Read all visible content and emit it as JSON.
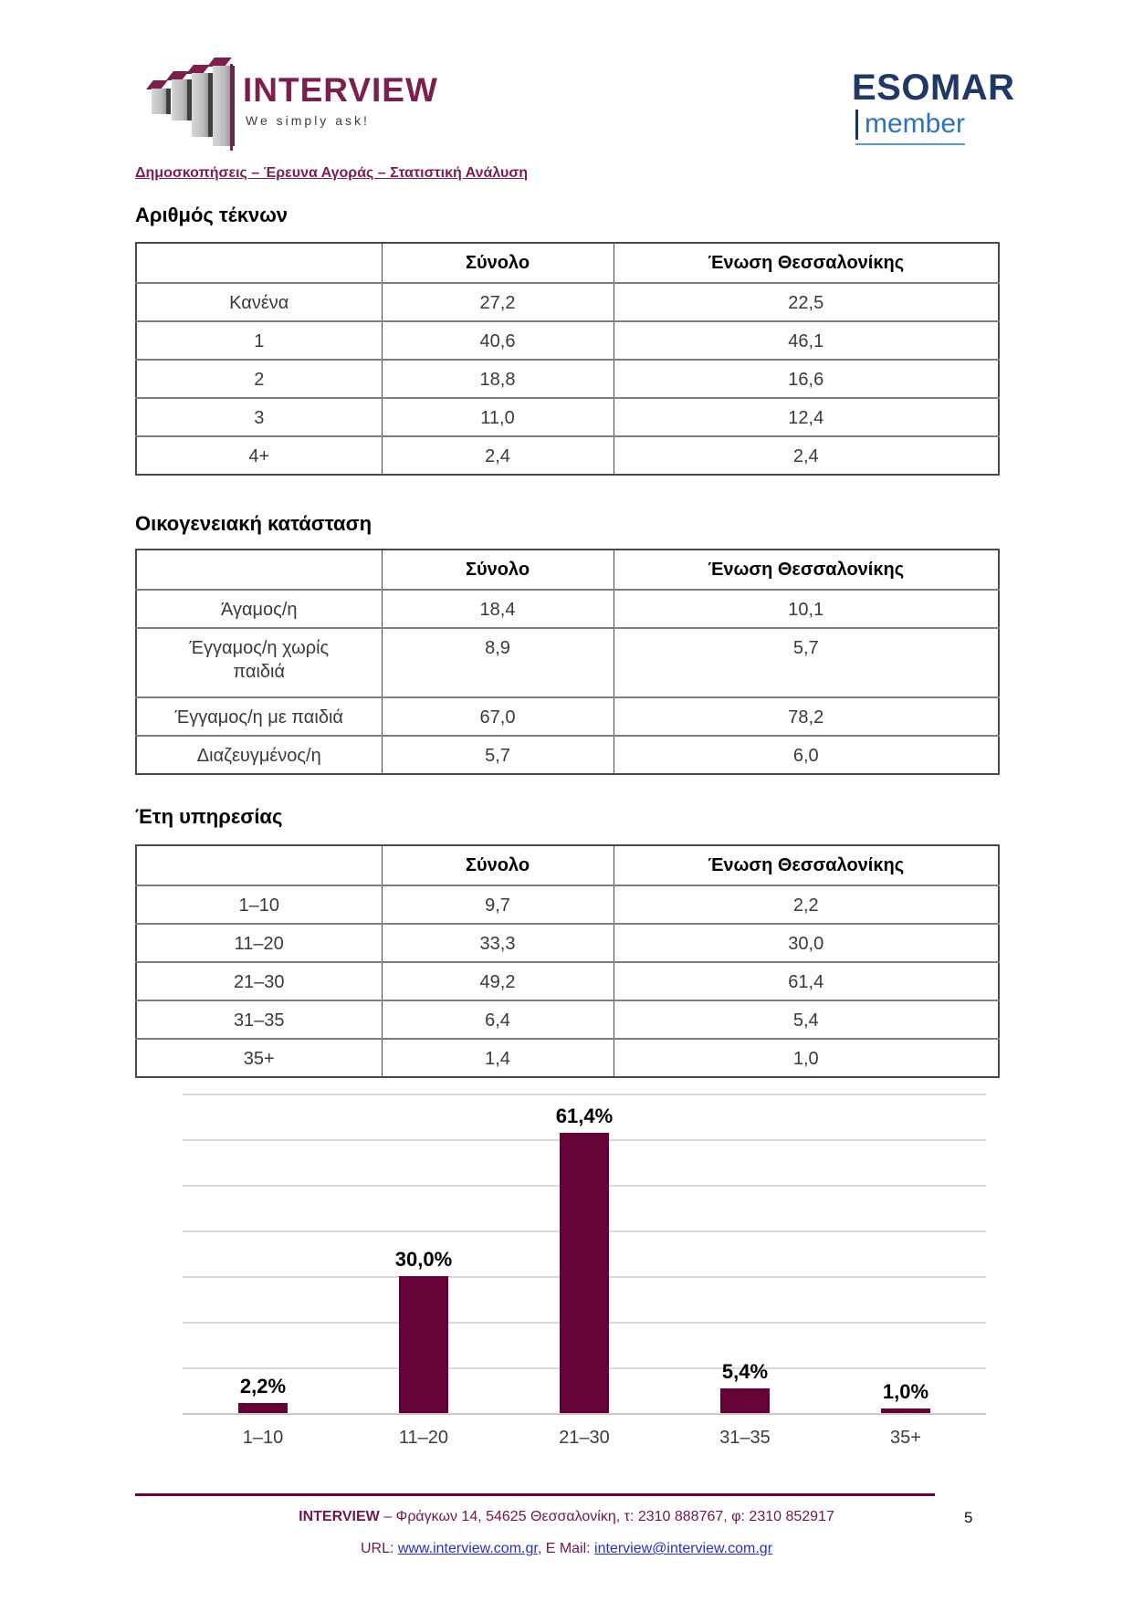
{
  "page": {
    "number": "5"
  },
  "header": {
    "brand": {
      "name": "INTERVIEW",
      "slogan": "We simply ask!",
      "color": "#7A1F4E",
      "logo_icon": "bar-chart-3d-icon"
    },
    "esomar": {
      "name": "ESOMAR",
      "member": "member",
      "name_color": "#1F3864",
      "member_color": "#2E74B5"
    },
    "department_line": "Δημοσκοπήσεις – Έρευνα Αγοράς – Στατιστική Ανάλυση"
  },
  "tables": [
    {
      "title": "Αριθμός τέκνων",
      "headers": [
        "",
        "Σύνολο",
        "Ένωση Θεσσαλονίκης"
      ],
      "rows": [
        [
          "Κανένα",
          "27,2",
          "22,5"
        ],
        [
          "1",
          "40,6",
          "46,1"
        ],
        [
          "2",
          "18,8",
          "16,6"
        ],
        [
          "3",
          "11,0",
          "12,4"
        ],
        [
          "4+",
          "2,4",
          "2,4"
        ]
      ]
    },
    {
      "title": "Οικογενειακή κατάσταση",
      "headers": [
        "",
        "Σύνολο",
        "Ένωση Θεσσαλονίκης"
      ],
      "rows": [
        [
          "Άγαμος/η",
          "18,4",
          "10,1"
        ],
        [
          "Έγγαμος/η χωρίς\nπαιδιά",
          "8,9",
          "5,7"
        ],
        [
          "Έγγαμος/η με παιδιά",
          "67,0",
          "78,2"
        ],
        [
          "Διαζευγμένος/η",
          "5,7",
          "6,0"
        ]
      ]
    },
    {
      "title": "Έτη υπηρεσίας",
      "headers": [
        "",
        "Σύνολο",
        "Ένωση Θεσσαλονίκης"
      ],
      "rows": [
        [
          "1–10",
          "9,7",
          "2,2"
        ],
        [
          "11–20",
          "33,3",
          "30,0"
        ],
        [
          "21–30",
          "49,2",
          "61,4"
        ],
        [
          "31–35",
          "6,4",
          "5,4"
        ],
        [
          "35+",
          "1,4",
          "1,0"
        ]
      ]
    }
  ],
  "chart_data": {
    "type": "bar",
    "title": "",
    "xlabel": "",
    "ylabel": "",
    "categories": [
      "1–10",
      "11–20",
      "21–30",
      "31–35",
      "35+"
    ],
    "values": [
      2.2,
      30.0,
      61.4,
      5.4,
      1.0
    ],
    "value_labels": [
      "2,2%",
      "30,0%",
      "61,4%",
      "5,4%",
      "1,0%"
    ],
    "ylim": [
      0,
      70
    ],
    "gridline_step": 10,
    "grid": "horizontal",
    "legend": "none",
    "bar_color": "#650338"
  },
  "footer": {
    "line1_brand": "INTERVIEW",
    "line1_rest": " – Φράγκων 14, 54625 Θεσσαλονίκη, τ: 2310 888767, φ: 2310 852917",
    "url_label": "URL: ",
    "url_link": "www.interview.com.gr",
    "email_label": ", E Mail: ",
    "email_link": "interview@interview.com.gr"
  }
}
